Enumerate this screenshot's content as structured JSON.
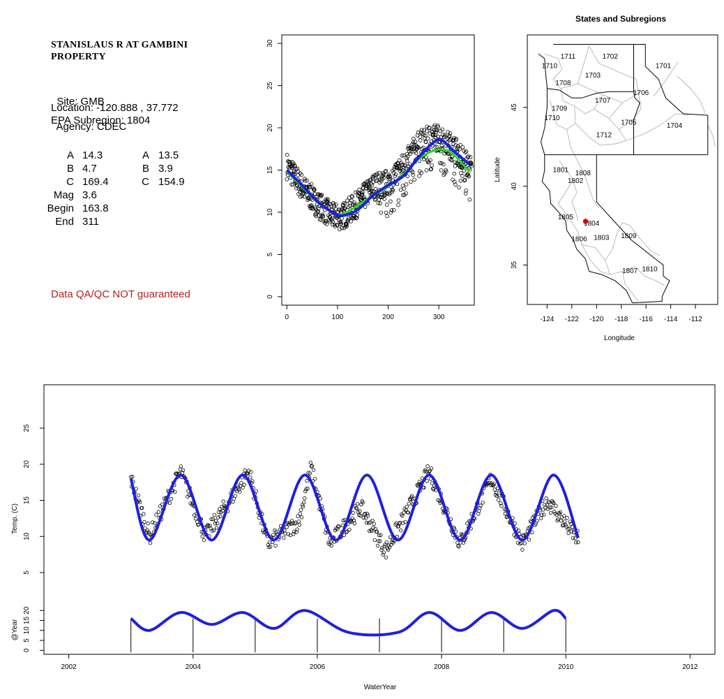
{
  "site": {
    "title_line1": "STANISLAUS R AT GAMBINI",
    "title_line2": "PROPERTY",
    "site_label": "Site: GMB",
    "agency_label": "Agency: CDEC",
    "location": "Location: -120.888 , 37.772",
    "subregion": "EPA Subregion: 1804"
  },
  "stats": {
    "left": [
      {
        "label": "A",
        "value": "14.3"
      },
      {
        "label": "B",
        "value": "4.7"
      },
      {
        "label": "C",
        "value": "169.4"
      },
      {
        "label": "Mag",
        "value": "3.6"
      },
      {
        "label": "Begin",
        "value": "163.8"
      },
      {
        "label": "End",
        "value": "311"
      }
    ],
    "right": [
      {
        "label": "A",
        "value": "13.5"
      },
      {
        "label": "B",
        "value": "3.9"
      },
      {
        "label": "C",
        "value": "154.9"
      }
    ]
  },
  "disclaimer": "Data QA/QC NOT guaranteed",
  "colors": {
    "disclaimer": "#b22222",
    "blue_fit": "#1f1fe0",
    "green_fit": "#22dd22",
    "points": "#000000",
    "site_marker": "#dd0000",
    "boundaries": "#aaaaaa"
  },
  "chart_data": [
    {
      "type": "scatter",
      "id": "annual-cycle",
      "title": "",
      "xlabel": "",
      "ylabel": "",
      "xlim": [
        -10,
        370
      ],
      "ylim": [
        -1,
        31
      ],
      "xticks": [
        0,
        100,
        200,
        300
      ],
      "yticks": [
        0,
        5,
        10,
        15,
        20,
        25,
        30
      ],
      "series": [
        {
          "kind": "points",
          "x": [
            0,
            30,
            60,
            90,
            110,
            140,
            170,
            200,
            230,
            260,
            290,
            310,
            340,
            365
          ],
          "y": [
            15.5,
            13,
            11,
            9.5,
            9.5,
            11,
            13,
            13.5,
            15.5,
            18,
            19,
            18.5,
            17,
            15
          ]
        },
        {
          "kind": "line",
          "x": [
            0,
            30,
            60,
            90,
            110,
            140,
            170,
            200,
            230,
            260,
            290,
            305,
            330,
            360
          ],
          "y": [
            15,
            13.2,
            11.3,
            10,
            9.6,
            10.3,
            12,
            13.2,
            14.3,
            16.5,
            18.3,
            18.6,
            17.2,
            15.7
          ]
        },
        {
          "kind": "line",
          "x": [
            0,
            30,
            60,
            90,
            110,
            140,
            170,
            200,
            230,
            260,
            290,
            310,
            330,
            360
          ],
          "y": [
            14.8,
            13,
            11.2,
            10,
            9.8,
            10.8,
            12,
            13,
            14.5,
            16.3,
            17.3,
            17.4,
            16.8,
            14.8
          ]
        }
      ]
    },
    {
      "type": "map",
      "id": "states-subregions-map",
      "title": "States and Subregions",
      "xlabel": "Longitude",
      "ylabel": "Latitude",
      "xticks": [
        -124,
        -122,
        -120,
        -118,
        -116,
        -114,
        -112
      ],
      "yticks": [
        35,
        40,
        45
      ],
      "xlim": [
        -125.6,
        -110.2
      ],
      "ylim": [
        32.5,
        49.6
      ],
      "site": {
        "lon": -120.888,
        "lat": 37.772
      },
      "region_labels": [
        {
          "label": "1711",
          "lon": -122.3,
          "lat": 48.1
        },
        {
          "label": "1710",
          "lon": -123.8,
          "lat": 47.5
        },
        {
          "label": "1702",
          "lon": -118.9,
          "lat": 48.1
        },
        {
          "label": "1701",
          "lon": -114.6,
          "lat": 47.5
        },
        {
          "label": "1703",
          "lon": -120.3,
          "lat": 46.9
        },
        {
          "label": "1708",
          "lon": -122.7,
          "lat": 46.4
        },
        {
          "label": "1706",
          "lon": -116.4,
          "lat": 45.8
        },
        {
          "label": "1707",
          "lon": -119.5,
          "lat": 45.3
        },
        {
          "label": "1709",
          "lon": -123.0,
          "lat": 44.8
        },
        {
          "label": "1710",
          "lon": -123.6,
          "lat": 44.2
        },
        {
          "label": "1705",
          "lon": -117.4,
          "lat": 43.9
        },
        {
          "label": "1704",
          "lon": -113.7,
          "lat": 43.7
        },
        {
          "label": "1712",
          "lon": -119.4,
          "lat": 43.1
        },
        {
          "label": "1801",
          "lon": -122.9,
          "lat": 40.9
        },
        {
          "label": "1808",
          "lon": -121.1,
          "lat": 40.7
        },
        {
          "label": "1802",
          "lon": -121.7,
          "lat": 40.2
        },
        {
          "label": "1805",
          "lon": -122.5,
          "lat": 37.9
        },
        {
          "label": "1804",
          "lon": -120.4,
          "lat": 37.5
        },
        {
          "label": "1806",
          "lon": -121.4,
          "lat": 36.5
        },
        {
          "label": "1803",
          "lon": -119.6,
          "lat": 36.6
        },
        {
          "label": "1809",
          "lon": -117.4,
          "lat": 36.7
        },
        {
          "label": "1810",
          "lon": -115.7,
          "lat": 34.6
        },
        {
          "label": "1807",
          "lon": -117.3,
          "lat": 34.5
        }
      ]
    },
    {
      "type": "line",
      "id": "time-series",
      "title": "",
      "xlabel": "WaterYear",
      "ylabel": "Temp. (C)",
      "xlim": [
        2001.6,
        2012.4
      ],
      "ylim": [
        2,
        31
      ],
      "xticks": [
        2002,
        2004,
        2006,
        2008,
        2010,
        2012
      ],
      "yticks": [
        5,
        10,
        15,
        20,
        25
      ],
      "series": [
        {
          "kind": "points",
          "x": [
            2003.0,
            2003.3,
            2003.8,
            2004.2,
            2004.9,
            2005.2,
            2005.7,
            2005.9,
            2006.2,
            2006.7,
            2007.1,
            2007.8,
            2008.3,
            2008.8,
            2009.3,
            2009.7,
            2010.2
          ],
          "y": [
            18,
            10,
            19,
            10,
            19,
            9,
            12,
            19.5,
            9,
            14,
            8,
            19,
            9,
            18,
            9,
            15,
            9.5
          ]
        },
        {
          "kind": "line",
          "x": [
            2003.0,
            2003.3,
            2003.8,
            2004.3,
            2004.8,
            2005.3,
            2005.8,
            2006.3,
            2006.8,
            2007.3,
            2007.8,
            2008.3,
            2008.8,
            2009.3,
            2009.8,
            2010.2
          ],
          "y": [
            18,
            9.5,
            18.5,
            9.5,
            18.5,
            9.5,
            18.5,
            9.5,
            18.5,
            9.5,
            18.5,
            9.5,
            18.5,
            9.5,
            18.5,
            9.8
          ]
        }
      ]
    },
    {
      "type": "line",
      "id": "yearly-strip",
      "title": "",
      "xlabel": "",
      "ylabel": "@Year",
      "xlim": [
        2001.6,
        2012.4
      ],
      "ylim": [
        -2,
        25
      ],
      "yticks": [
        0,
        5,
        10,
        15,
        20
      ],
      "year_markers": [
        2003,
        2004,
        2005,
        2006,
        2007,
        2008,
        2009,
        2010
      ],
      "series": [
        {
          "kind": "line",
          "x": [
            2003.0,
            2003.3,
            2003.8,
            2004.3,
            2004.8,
            2005.3,
            2005.8,
            2006.5,
            2007.3,
            2007.8,
            2008.3,
            2008.8,
            2009.3,
            2009.8,
            2010.0
          ],
          "y": [
            16,
            10,
            19,
            13,
            19,
            11,
            20,
            9,
            9,
            19,
            10,
            19,
            11,
            20,
            16
          ]
        }
      ]
    }
  ]
}
